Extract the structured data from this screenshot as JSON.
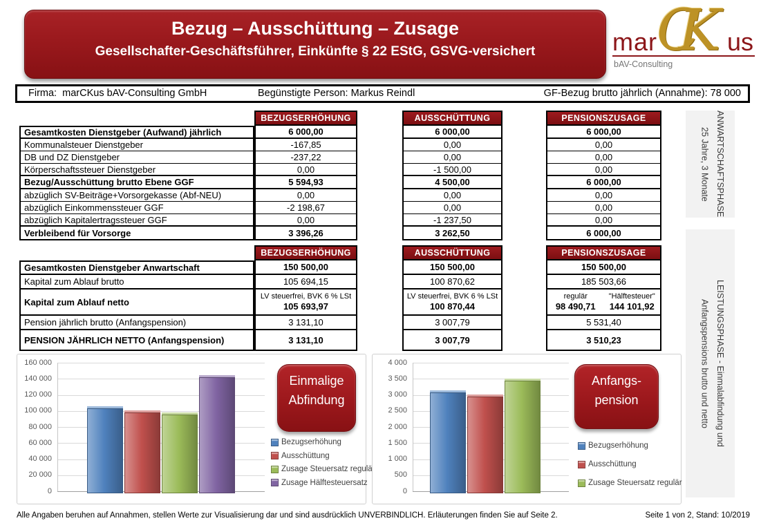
{
  "header": {
    "title": "Bezug – Ausschüttung – Zusage",
    "subtitle": "Gesellschafter-Geschäftsführer, Einkünfte § 22 EStG, GSVG-versichert",
    "logo": {
      "prefix": "mar",
      "monogram": "CK",
      "suffix": "us",
      "tagline": "bAV-Consulting"
    }
  },
  "info_bar": {
    "firma": "Firma:  marCKus bAV-Consulting GmbH",
    "person": "Begünstigte Person: Markus Reindl",
    "bezug": "GF-Bezug brutto jährlich (Annahme): 78 000"
  },
  "columns": [
    "BEZUGSERHÖHUNG",
    "AUSSCHÜTTUNG",
    "PENSIONSZUSAGE"
  ],
  "table1": {
    "rows": [
      {
        "label": "Gesamtkosten Dienstgeber (Aufwand) jährlich",
        "bold": true,
        "values": [
          "6 000,00",
          "6 000,00",
          "6 000,00"
        ]
      },
      {
        "label": "Kommunalsteuer Dienstgeber",
        "bold": false,
        "values": [
          "-167,85",
          "0,00",
          "0,00"
        ]
      },
      {
        "label": "DB und DZ Dienstgeber",
        "bold": false,
        "values": [
          "-237,22",
          "0,00",
          "0,00"
        ]
      },
      {
        "label": "Körperschaftssteuer Dienstgeber",
        "bold": false,
        "values": [
          "0,00",
          "-1 500,00",
          "0,00"
        ]
      },
      {
        "label": "Bezug/Ausschüttung brutto Ebene GGF",
        "bold": true,
        "values": [
          "5 594,93",
          "4 500,00",
          "6 000,00"
        ]
      },
      {
        "label": "abzüglich SV-Beiträge+Vorsorgekasse (Abf-NEU)",
        "bold": false,
        "values": [
          "0,00",
          "0,00",
          "0,00"
        ]
      },
      {
        "label": "abzüglich Einkommenssteuer GGF",
        "bold": false,
        "values": [
          "-2 198,67",
          "0,00",
          "0,00"
        ]
      },
      {
        "label": "abzüglich Kapitalertragssteuer GGF",
        "bold": false,
        "values": [
          "0,00",
          "-1 237,50",
          "0,00"
        ]
      },
      {
        "label": "Verbleibend für Vorsorge",
        "bold": true,
        "values": [
          "3 396,26",
          "3 262,50",
          "6 000,00"
        ]
      }
    ]
  },
  "table2": {
    "rows": [
      {
        "label": "Gesamtkosten Dienstgeber Anwartschaft",
        "bold": true,
        "values": [
          "150 500,00",
          "150 500,00",
          "150 500,00"
        ]
      },
      {
        "label": "Kapital zum Ablauf brutto",
        "bold": false,
        "values": [
          "105 694,15",
          "100 870,62",
          "185 503,66"
        ]
      },
      {
        "label": "Kapital zum Ablauf netto",
        "bold": true,
        "values": [
          {
            "sub": "LV steuerfrei, BVK 6 % LSt",
            "num": "105 693,97"
          },
          {
            "sub": "LV steuerfrei, BVK 6 % LSt",
            "num": "100 870,44"
          },
          {
            "sub2": [
              "regulär",
              "\"Hälftesteuer\""
            ],
            "num2": [
              "98 490,71",
              "144 101,92"
            ]
          }
        ]
      },
      {
        "label": "Pension jährlich brutto (Anfangspension)",
        "bold": false,
        "values": [
          "3 131,10",
          "3 007,79",
          "5 531,40"
        ]
      },
      {
        "label": "PENSION JÄHRLICH NETTO (Anfangspension)",
        "bold": true,
        "values": [
          "3 131,10",
          "3 007,79",
          "3 510,23"
        ]
      }
    ]
  },
  "sidebars": [
    {
      "lines": [
        "ANWARTSCHAFTSPHASE",
        "25 Jahre, 3 Monate"
      ]
    },
    {
      "lines": [
        "LEISTUNGSPHASE - Einmalabfindung und",
        "Anfangspensions brutto und netto"
      ]
    }
  ],
  "chart_data": [
    {
      "type": "bar",
      "callout": [
        "Einmalige",
        "Abfindung"
      ],
      "categories": [
        "Bezugserhöhung",
        "Ausschüttung",
        "Zusage Steuersatz regulär",
        "Zusage Hälftesteuersatz"
      ],
      "values": [
        105694,
        100870,
        98491,
        144102
      ],
      "colors": [
        "#4F81BD",
        "#C0504D",
        "#9BBB59",
        "#8064A2"
      ],
      "ylim": [
        0,
        160000
      ],
      "ytick_step": 20000,
      "ytick_labels": [
        "0",
        "20 000",
        "40 000",
        "60 000",
        "80 000",
        "100 000",
        "120 000",
        "140 000",
        "160 000"
      ],
      "legend_position": "right",
      "grid": true,
      "xlabel": "",
      "ylabel": ""
    },
    {
      "type": "bar",
      "callout": [
        "Anfangs-",
        "pension"
      ],
      "categories": [
        "Bezugserhöhung",
        "Ausschüttung",
        "Zusage Steuersatz regulär"
      ],
      "values": [
        3131,
        3008,
        3510
      ],
      "colors": [
        "#4F81BD",
        "#C0504D",
        "#9BBB59"
      ],
      "ylim": [
        0,
        4000
      ],
      "ytick_step": 500,
      "ytick_labels": [
        "0",
        "500",
        "1 000",
        "1 500",
        "2 000",
        "2 500",
        "3 000",
        "3 500",
        "4 000"
      ],
      "legend_position": "right",
      "grid": true,
      "xlabel": "",
      "ylabel": ""
    }
  ],
  "footer": {
    "left": "Alle Angaben beruhen auf Annahmen, stellen Werte zur Visualisierung dar und sind ausdrücklich UNVERBINDLICH. Erläuterungen finden Sie auf Seite 2.",
    "right": "Seite 1 von 2, Stand: 10/2019"
  },
  "colors": {
    "accent_red": "#9a181c",
    "table_header_red": "#8b1417",
    "logo_gold": "#bd9226",
    "logo_red": "#8c1619",
    "sidebar_gray": "#f2f2f2",
    "bar_blue": "#4F81BD",
    "bar_red": "#C0504D",
    "bar_green": "#9BBB59",
    "bar_purple": "#8064A2"
  }
}
